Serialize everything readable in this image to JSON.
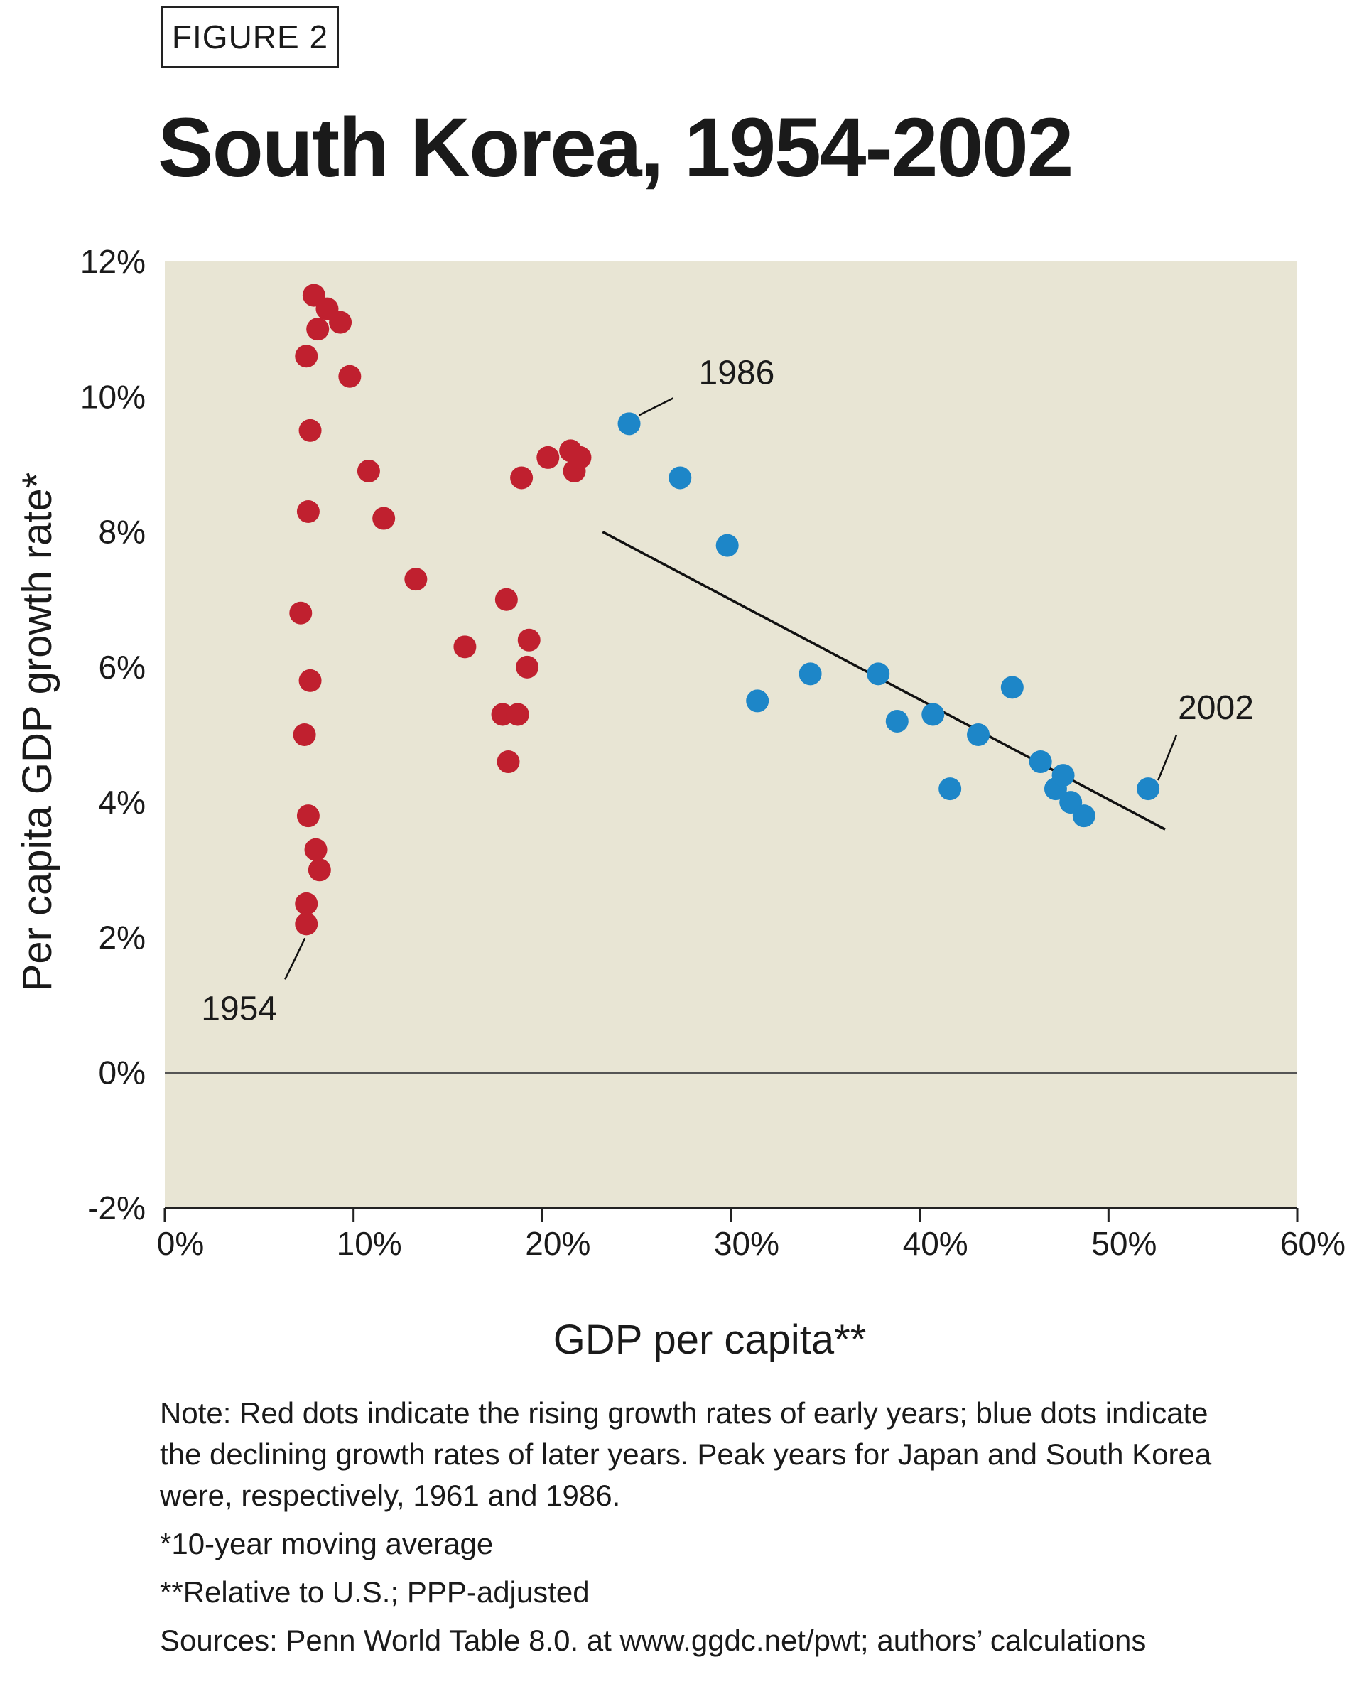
{
  "figure_label": "FIGURE 2",
  "title": "South Korea, 1954-2002",
  "notes": {
    "note": "Note: Red dots indicate the rising growth rates of early years; blue dots indicate the declining growth rates of later years. Peak years for Japan and South Korea were, respectively, 1961 and 1986.",
    "footnote1": "*10-year moving average",
    "footnote2": "**Relative to U.S.; PPP-adjusted",
    "sources": "Sources: Penn World Table 8.0. at www.ggdc.net/pwt; authors’ calculations"
  },
  "colors": {
    "plot_background": "#e8e5d4",
    "early_years": "#c0202f",
    "later_years": "#1d86c8",
    "trend_line": "#111111",
    "zero_line": "#555555"
  },
  "chart_data": {
    "type": "scatter",
    "title": "South Korea, 1954-2002",
    "xlabel": "GDP per capita**",
    "ylabel": "Per capita GDP growth rate*",
    "xlim": [
      0,
      60
    ],
    "ylim": [
      -2,
      12
    ],
    "x_ticks": [
      "0%",
      "10%",
      "20%",
      "30%",
      "40%",
      "50%",
      "60%"
    ],
    "y_ticks": [
      "-2%",
      "0%",
      "2%",
      "4%",
      "6%",
      "8%",
      "10%",
      "12%"
    ],
    "grid": false,
    "series": [
      {
        "key": "early",
        "points": [
          [
            7.5,
            2.2
          ],
          [
            7.5,
            2.5
          ],
          [
            8.2,
            3.0
          ],
          [
            8.0,
            3.3
          ],
          [
            7.6,
            3.8
          ],
          [
            7.4,
            5.0
          ],
          [
            7.7,
            5.8
          ],
          [
            7.2,
            6.8
          ],
          [
            7.6,
            8.3
          ],
          [
            7.7,
            9.5
          ],
          [
            7.5,
            10.6
          ],
          [
            8.1,
            11.0
          ],
          [
            7.9,
            11.5
          ],
          [
            8.6,
            11.3
          ],
          [
            9.3,
            11.1
          ],
          [
            9.8,
            10.3
          ],
          [
            10.8,
            8.9
          ],
          [
            11.6,
            8.2
          ],
          [
            13.3,
            7.3
          ],
          [
            15.9,
            6.3
          ],
          [
            17.9,
            5.3
          ],
          [
            18.1,
            7.0
          ],
          [
            18.2,
            4.6
          ],
          [
            18.7,
            5.3
          ],
          [
            18.9,
            8.8
          ],
          [
            19.2,
            6.0
          ],
          [
            19.3,
            6.4
          ],
          [
            20.3,
            9.1
          ],
          [
            21.5,
            9.2
          ],
          [
            21.7,
            8.9
          ],
          [
            22.0,
            9.1
          ]
        ]
      },
      {
        "key": "later",
        "points": [
          [
            24.6,
            9.6
          ],
          [
            27.3,
            8.8
          ],
          [
            29.8,
            7.8
          ],
          [
            31.4,
            5.5
          ],
          [
            34.2,
            5.9
          ],
          [
            37.8,
            5.9
          ],
          [
            38.8,
            5.2
          ],
          [
            40.7,
            5.3
          ],
          [
            41.6,
            4.2
          ],
          [
            43.1,
            5.0
          ],
          [
            44.9,
            5.7
          ],
          [
            46.4,
            4.6
          ],
          [
            47.2,
            4.2
          ],
          [
            47.6,
            4.4
          ],
          [
            48.0,
            4.0
          ],
          [
            48.7,
            3.8
          ],
          [
            52.1,
            4.2
          ]
        ]
      }
    ],
    "trend_line": {
      "x": [
        23.2,
        53.0
      ],
      "y": [
        8.0,
        3.6
      ]
    },
    "annotations": [
      {
        "text": "1954",
        "point": [
          7.5,
          2.2
        ]
      },
      {
        "text": "1986",
        "point": [
          24.6,
          9.6
        ]
      },
      {
        "text": "2002",
        "point": [
          52.1,
          4.2
        ]
      }
    ]
  }
}
